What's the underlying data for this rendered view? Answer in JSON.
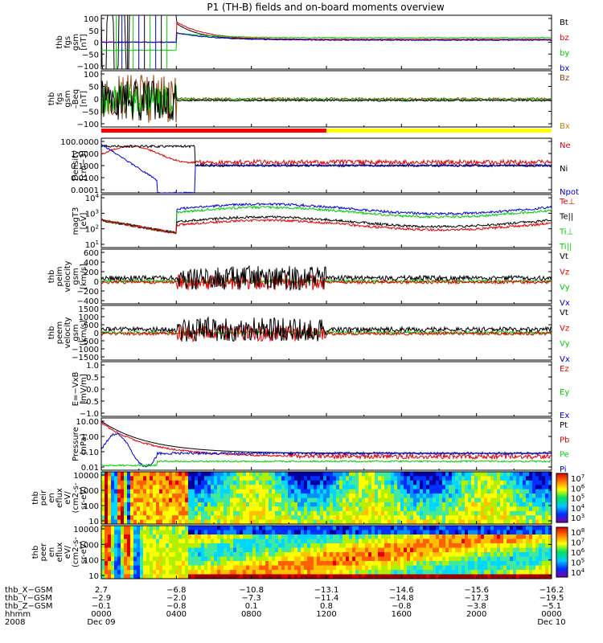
{
  "chart_data": {
    "type": "line",
    "title": "P1 (TH-B) fields and on-board moments overview",
    "panels": [
      {
        "id": "fgs",
        "ylabel": [
          "thb",
          "fgs",
          "gsm",
          "[nT]"
        ],
        "yticks": [
          "100",
          "50",
          "0",
          "−50",
          "−100"
        ],
        "legend": [
          {
            "label": "Bt",
            "color": "#000000"
          },
          {
            "label": "bz",
            "color": "#e00000"
          },
          {
            "label": "by",
            "color": "#00cc00"
          },
          {
            "label": "bx",
            "color": "#0000dd"
          }
        ]
      },
      {
        "id": "fgs-eq",
        "ylabel": [
          "thb",
          "fgs",
          "gsm",
          "–Beq",
          "[nT]"
        ],
        "yticks": [
          "100",
          "50",
          "0",
          "−50",
          "−100"
        ],
        "legend": [
          {
            "label": "Bz",
            "color": "#8b4513"
          },
          {
            "label": "Bx",
            "color": "#b8860b"
          }
        ]
      },
      {
        "id": "density",
        "ylabel": [
          "Density",
          "[cm−3]"
        ],
        "yticks": [
          "100.0000",
          "1.0000",
          "0.1000",
          "0.0100",
          "0.0001"
        ],
        "legend": [
          {
            "label": "Ne",
            "color": "#e00000"
          },
          {
            "label": "Ni",
            "color": "#000000"
          },
          {
            "label": "Npot",
            "color": "#0000dd"
          }
        ]
      },
      {
        "id": "temperature",
        "ylabel": [
          "magT3",
          "[eV]"
        ],
        "yticks": [
          "10^4",
          "10^3",
          "10^2",
          "10^1"
        ],
        "legend": [
          {
            "label": "Te⊥",
            "color": "#e00000"
          },
          {
            "label": "Te||",
            "color": "#000000"
          },
          {
            "label": "Ti⊥",
            "color": "#00cc00"
          },
          {
            "label": "Ti||",
            "color": "#00cc00"
          }
        ]
      },
      {
        "id": "peim",
        "ylabel": [
          "thb",
          "peim",
          "velocity",
          "gsm",
          "[km/s]"
        ],
        "yticks": [
          "600",
          "400",
          "200",
          "0",
          "−200",
          "−400"
        ],
        "legend": [
          {
            "label": "Vt",
            "color": "#000000"
          },
          {
            "label": "Vz",
            "color": "#e00000"
          },
          {
            "label": "Vy",
            "color": "#00cc00"
          },
          {
            "label": "Vx",
            "color": "#0000dd"
          }
        ]
      },
      {
        "id": "peem",
        "ylabel": [
          "thb",
          "peem",
          "velocity",
          "gsm",
          "[km/s]"
        ],
        "yticks": [
          "1500",
          "1000",
          "500",
          "0",
          "−500",
          "−1000",
          "−1500"
        ],
        "legend": [
          {
            "label": "Vt",
            "color": "#000000"
          },
          {
            "label": "Vz",
            "color": "#e00000"
          },
          {
            "label": "Vy",
            "color": "#00cc00"
          },
          {
            "label": "Vx",
            "color": "#0000dd"
          }
        ]
      },
      {
        "id": "efield",
        "ylabel": [
          "E=−VxB",
          "[mV/m]"
        ],
        "yticks": [
          "1.0",
          "0.5",
          "0.0",
          "−0.5",
          "−1.0"
        ],
        "legend": [
          {
            "label": "Ez",
            "color": "#e00000"
          },
          {
            "label": "Ey",
            "color": "#00cc00"
          },
          {
            "label": "Ex",
            "color": "#0000dd"
          }
        ]
      },
      {
        "id": "pressure",
        "ylabel": [
          "Pressure",
          "[nPa]"
        ],
        "yticks": [
          "10.00",
          "1.00",
          "0.10",
          "0.01"
        ],
        "legend": [
          {
            "label": "Pt",
            "color": "#000000"
          },
          {
            "label": "Pb",
            "color": "#e00000"
          },
          {
            "label": "Pe",
            "color": "#00cc00"
          },
          {
            "label": "Pi",
            "color": "#0000dd"
          }
        ]
      },
      {
        "id": "peir-spec",
        "ylabel": [
          "thb",
          "peir",
          "en",
          "eflux",
          "eV/",
          "(cm2-s-",
          "sr-eV)"
        ],
        "yticks": [
          "10000",
          "1000",
          "100",
          "10"
        ],
        "colorbar": [
          "10^7",
          "10^6",
          "10^5",
          "10^4",
          "10^3"
        ]
      },
      {
        "id": "peer-spec",
        "ylabel": [
          "thb",
          "peer",
          "en",
          "eflux",
          "eV/",
          "(cm2-s-",
          "sr-eV)"
        ],
        "yticks": [
          "10000",
          "1000",
          "100",
          "10"
        ],
        "colorbar": [
          "10^8",
          "10^7",
          "10^6",
          "10^5",
          "10^4"
        ]
      }
    ],
    "x_axis": {
      "time_labels": [
        "0000",
        "0400",
        "0800",
        "1200",
        "1600",
        "2000",
        "0000"
      ],
      "dates": {
        "start": "Dec 09",
        "end": "Dec 10"
      },
      "year": "2008",
      "rows": [
        {
          "label": "thb_X−GSM",
          "values": [
            "2.7",
            "−6.8",
            "−10.8",
            "−13.1",
            "−14.6",
            "−15.6",
            "−16.2"
          ]
        },
        {
          "label": "thb_Y−GSM",
          "values": [
            "−2.9",
            "−2.0",
            "−7.3",
            "−11.4",
            "−14.8",
            "−17.3",
            "−19.5"
          ]
        },
        {
          "label": "thb_Z−GSM",
          "values": [
            "−0.1",
            "−0.8",
            "0.1",
            "0.8",
            "−0.8",
            "−3.8",
            "−5.1"
          ]
        },
        {
          "label": "hhmm",
          "values": []
        }
      ]
    },
    "status_bar": {
      "colors": [
        "#ff0000",
        "#ffff00"
      ],
      "split_hour": 12
    }
  }
}
